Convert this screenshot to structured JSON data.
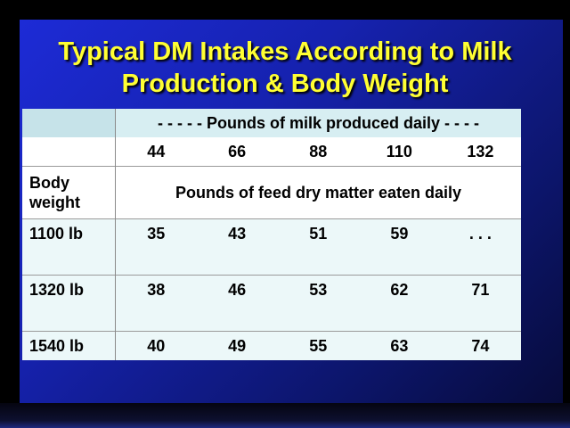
{
  "slide": {
    "title_line1": "Typical DM Intakes According to Milk",
    "title_line2": "Production & Body Weight"
  },
  "table": {
    "milk_header": "- - - - - Pounds  of milk produced daily - - - -",
    "milk_values": [
      "44",
      "66",
      "88",
      "110",
      "132"
    ],
    "row_label_header": "Body weight",
    "feed_description": "Pounds  of feed dry matter eaten daily",
    "rows": [
      {
        "weight": "1100 lb",
        "values": [
          "35",
          "43",
          "51",
          "59",
          ". . ."
        ]
      },
      {
        "weight": "1320 lb",
        "values": [
          "38",
          "46",
          "53",
          "62",
          "71"
        ]
      },
      {
        "weight": "1540 lb",
        "values": [
          "40",
          "49",
          "55",
          "63",
          "74"
        ]
      }
    ]
  },
  "colors": {
    "background_blue": "#1d2bd6",
    "title_yellow": "#ffff33",
    "header_row": "#d7eef2",
    "data_row": "#ecf8f9"
  }
}
